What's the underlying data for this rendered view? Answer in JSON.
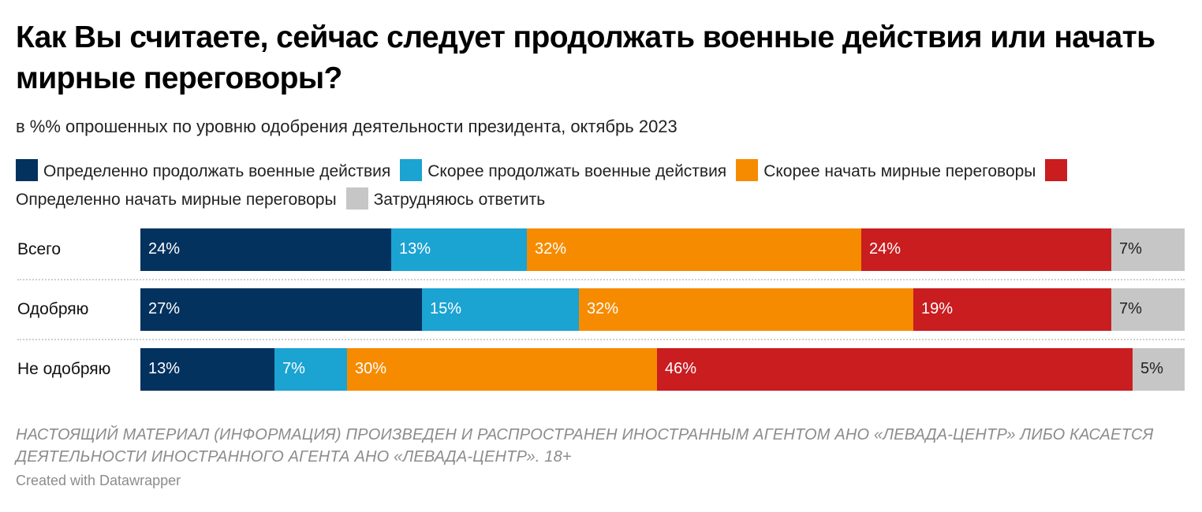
{
  "title": "Как Вы считаете, сейчас следует продолжать военные действия или начать мирные переговоры?",
  "subtitle": "в %% опрошенных по уровню одобрения деятельности президента, октябрь 2023",
  "notes": "НАСТОЯЩИЙ МАТЕРИАЛ (ИНФОРМАЦИЯ) ПРОИЗВЕДЕН И РАСПРОСТРАНЕН ИНОСТРАННЫМ АГЕНТОМ АНО «ЛЕВАДА-ЦЕНТР» ЛИБО КАСАЕТСЯ ДЕЯТЕЛЬНОСТИ ИНОСТРАННОГО АГЕНТА АНО «ЛЕВАДА-ЦЕНТР». 18+",
  "credit": "Created with Datawrapper",
  "chart_data": {
    "type": "bar",
    "orientation": "horizontal",
    "stacked": true,
    "unit": "%",
    "categories": [
      "Всего",
      "Одобряю",
      "Не одобряю"
    ],
    "series": [
      {
        "name": "Определенно продолжать военные действия",
        "color": "#04325f",
        "label_color": "#ffffff",
        "values": [
          24,
          27,
          13
        ]
      },
      {
        "name": "Скорее продолжать военные действия",
        "color": "#1ba3d2",
        "label_color": "#ffffff",
        "values": [
          13,
          15,
          7
        ]
      },
      {
        "name": "Скорее начать мирные переговоры",
        "color": "#f68b00",
        "label_color": "#ffffff",
        "values": [
          32,
          32,
          30
        ]
      },
      {
        "name": "Определенно начать мирные переговоры",
        "color": "#c91d20",
        "label_color": "#ffffff",
        "values": [
          24,
          19,
          46
        ]
      },
      {
        "name": "Затрудняюсь ответить",
        "color": "#c6c6c6",
        "label_color": "#222222",
        "values": [
          7,
          7,
          5
        ]
      }
    ],
    "legend_position": "top"
  }
}
